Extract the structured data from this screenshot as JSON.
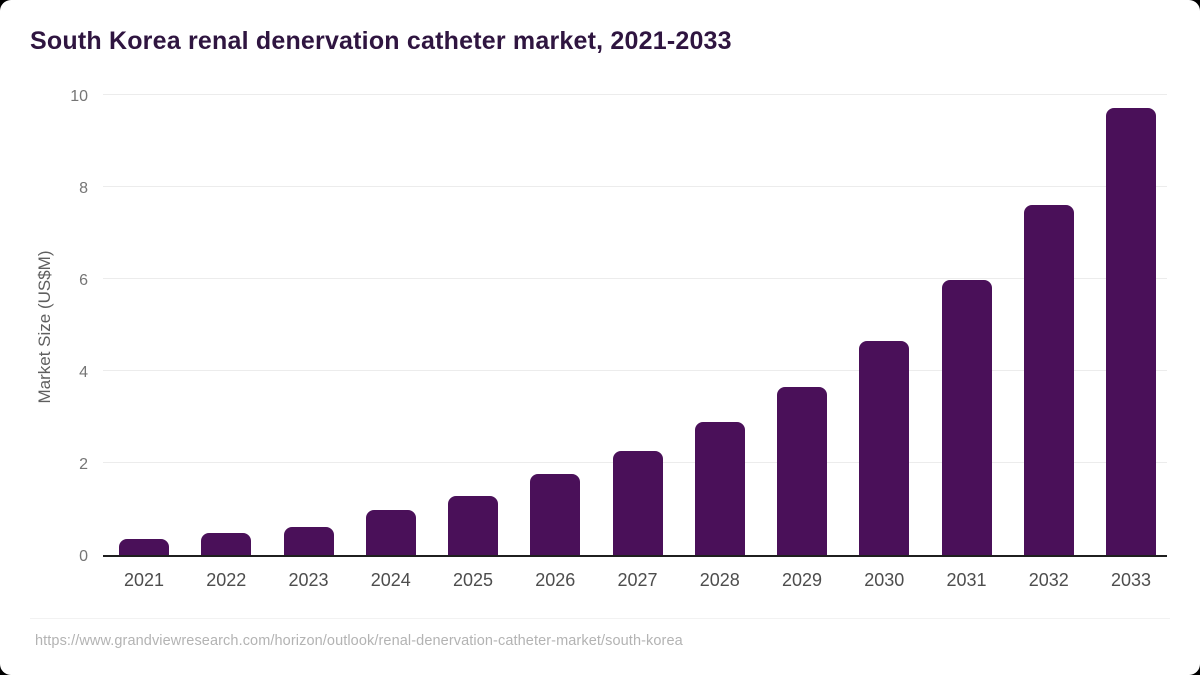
{
  "title": "South Korea renal denervation catheter market, 2021-2033",
  "chart_data": {
    "type": "bar",
    "title": "South Korea renal denervation catheter market, 2021-2033",
    "categories": [
      "2021",
      "2022",
      "2023",
      "2024",
      "2025",
      "2026",
      "2027",
      "2028",
      "2029",
      "2030",
      "2031",
      "2032",
      "2033"
    ],
    "values": [
      0.35,
      0.48,
      0.6,
      0.98,
      1.29,
      1.77,
      2.26,
      2.89,
      3.66,
      4.66,
      5.97,
      7.6,
      9.71
    ],
    "xlabel": "",
    "ylabel": "Market Size (US$M)",
    "ylim": [
      0,
      10
    ],
    "yticks": [
      0,
      2,
      4,
      6,
      8,
      10
    ],
    "grid": true,
    "legend": false,
    "bar_color": "#4a1059"
  },
  "footer": {
    "source_url": "https://www.grandviewresearch.com/horizon/outlook/renal-denervation-catheter-market/south-korea"
  },
  "colors": {
    "page_bg": "#000000",
    "card_bg": "#ffffff",
    "title_text": "#2f1540",
    "bar": "#4a1059",
    "gridline": "#ececec",
    "axis_line": "#1f1f1f",
    "y_tick_text": "#757575",
    "x_tick_text": "#4d4d4d",
    "y_axis_title_text": "#5f5f5f",
    "source_text": "#b3b3b3"
  }
}
